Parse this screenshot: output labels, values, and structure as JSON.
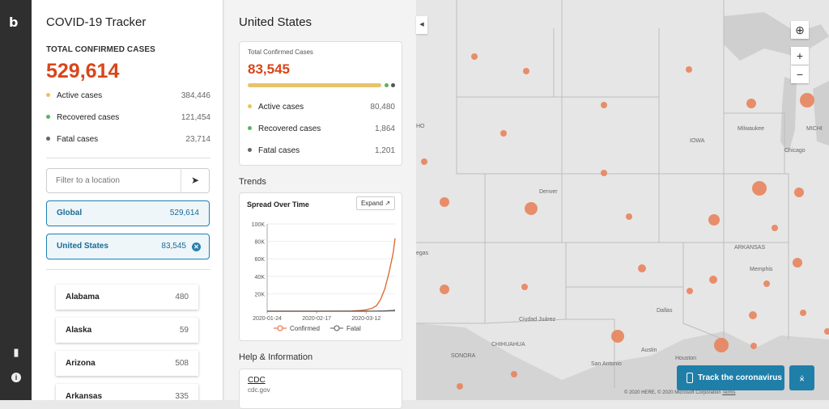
{
  "app": {
    "title": "COVID-19 Tracker"
  },
  "global_summary": {
    "label": "TOTAL CONFIRMED CASES",
    "total": "529,614",
    "stats": [
      {
        "label": "Active cases",
        "value": "384,446",
        "color": "#f0c15a"
      },
      {
        "label": "Recovered cases",
        "value": "121,454",
        "color": "#5bb35b"
      },
      {
        "label": "Fatal cases",
        "value": "23,714",
        "color": "#666666"
      }
    ]
  },
  "filter": {
    "placeholder": "Filter to a location"
  },
  "selected": [
    {
      "label": "Global",
      "value": "529,614"
    },
    {
      "label": "United States",
      "value": "83,545"
    }
  ],
  "states": [
    {
      "name": "Alabama",
      "value": "480"
    },
    {
      "name": "Alaska",
      "value": "59"
    },
    {
      "name": "Arizona",
      "value": "508"
    },
    {
      "name": "Arkansas",
      "value": "335"
    }
  ],
  "country_panel": {
    "title": "United States",
    "card_label": "Total Confirmed Cases",
    "total": "83,545",
    "stats": [
      {
        "label": "Active cases",
        "value": "80,480",
        "color": "#f0c15a"
      },
      {
        "label": "Recovered cases",
        "value": "1,864",
        "color": "#5bb35b"
      },
      {
        "label": "Fatal cases",
        "value": "1,201",
        "color": "#666666"
      }
    ],
    "trends_heading": "Trends",
    "chart_title": "Spread Over Time",
    "expand_label": "Expand",
    "help_heading": "Help & Information",
    "help_item": {
      "name": "CDC",
      "url_text": "cdc.gov"
    }
  },
  "chart_data": {
    "type": "line",
    "title": "Spread Over Time",
    "x": [
      "2020-01-24",
      "2020-02-07",
      "2020-02-17",
      "2020-02-27",
      "2020-03-05",
      "2020-03-10",
      "2020-03-12",
      "2020-03-15",
      "2020-03-17",
      "2020-03-19",
      "2020-03-21",
      "2020-03-23",
      "2020-03-25",
      "2020-03-26"
    ],
    "x_tick_labels": [
      "2020-01-24",
      "2020-02-17",
      "2020-03-12"
    ],
    "y_tick_labels": [
      "20K",
      "40K",
      "60K",
      "80K",
      "100K"
    ],
    "ylim": [
      0,
      100000
    ],
    "series": [
      {
        "name": "Confirmed",
        "color": "#e0622c",
        "values": [
          1,
          12,
          15,
          60,
          200,
          1000,
          1600,
          3500,
          6400,
          13700,
          25500,
          43700,
          65800,
          83545
        ]
      },
      {
        "name": "Fatal",
        "color": "#555555",
        "values": [
          0,
          0,
          0,
          0,
          11,
          28,
          40,
          60,
          100,
          200,
          300,
          550,
          940,
          1201
        ]
      }
    ],
    "legend": "bottom"
  },
  "map": {
    "labels": [
      "Denver",
      "IOWA",
      "Milwaukee",
      "Chicago",
      "Dallas",
      "Memphis",
      "Austin",
      "San Antonio",
      "Houston",
      "Ciudad Juárez",
      "CHIHUAHUA",
      "SONORA",
      "ARKANSAS",
      "egas",
      "HO",
      "MICHI"
    ],
    "copyright": "© 2020 HERE, © 2020 Microsoft Corporation",
    "terms": "Terms"
  },
  "actions": {
    "track": "Track the coronavirus"
  }
}
